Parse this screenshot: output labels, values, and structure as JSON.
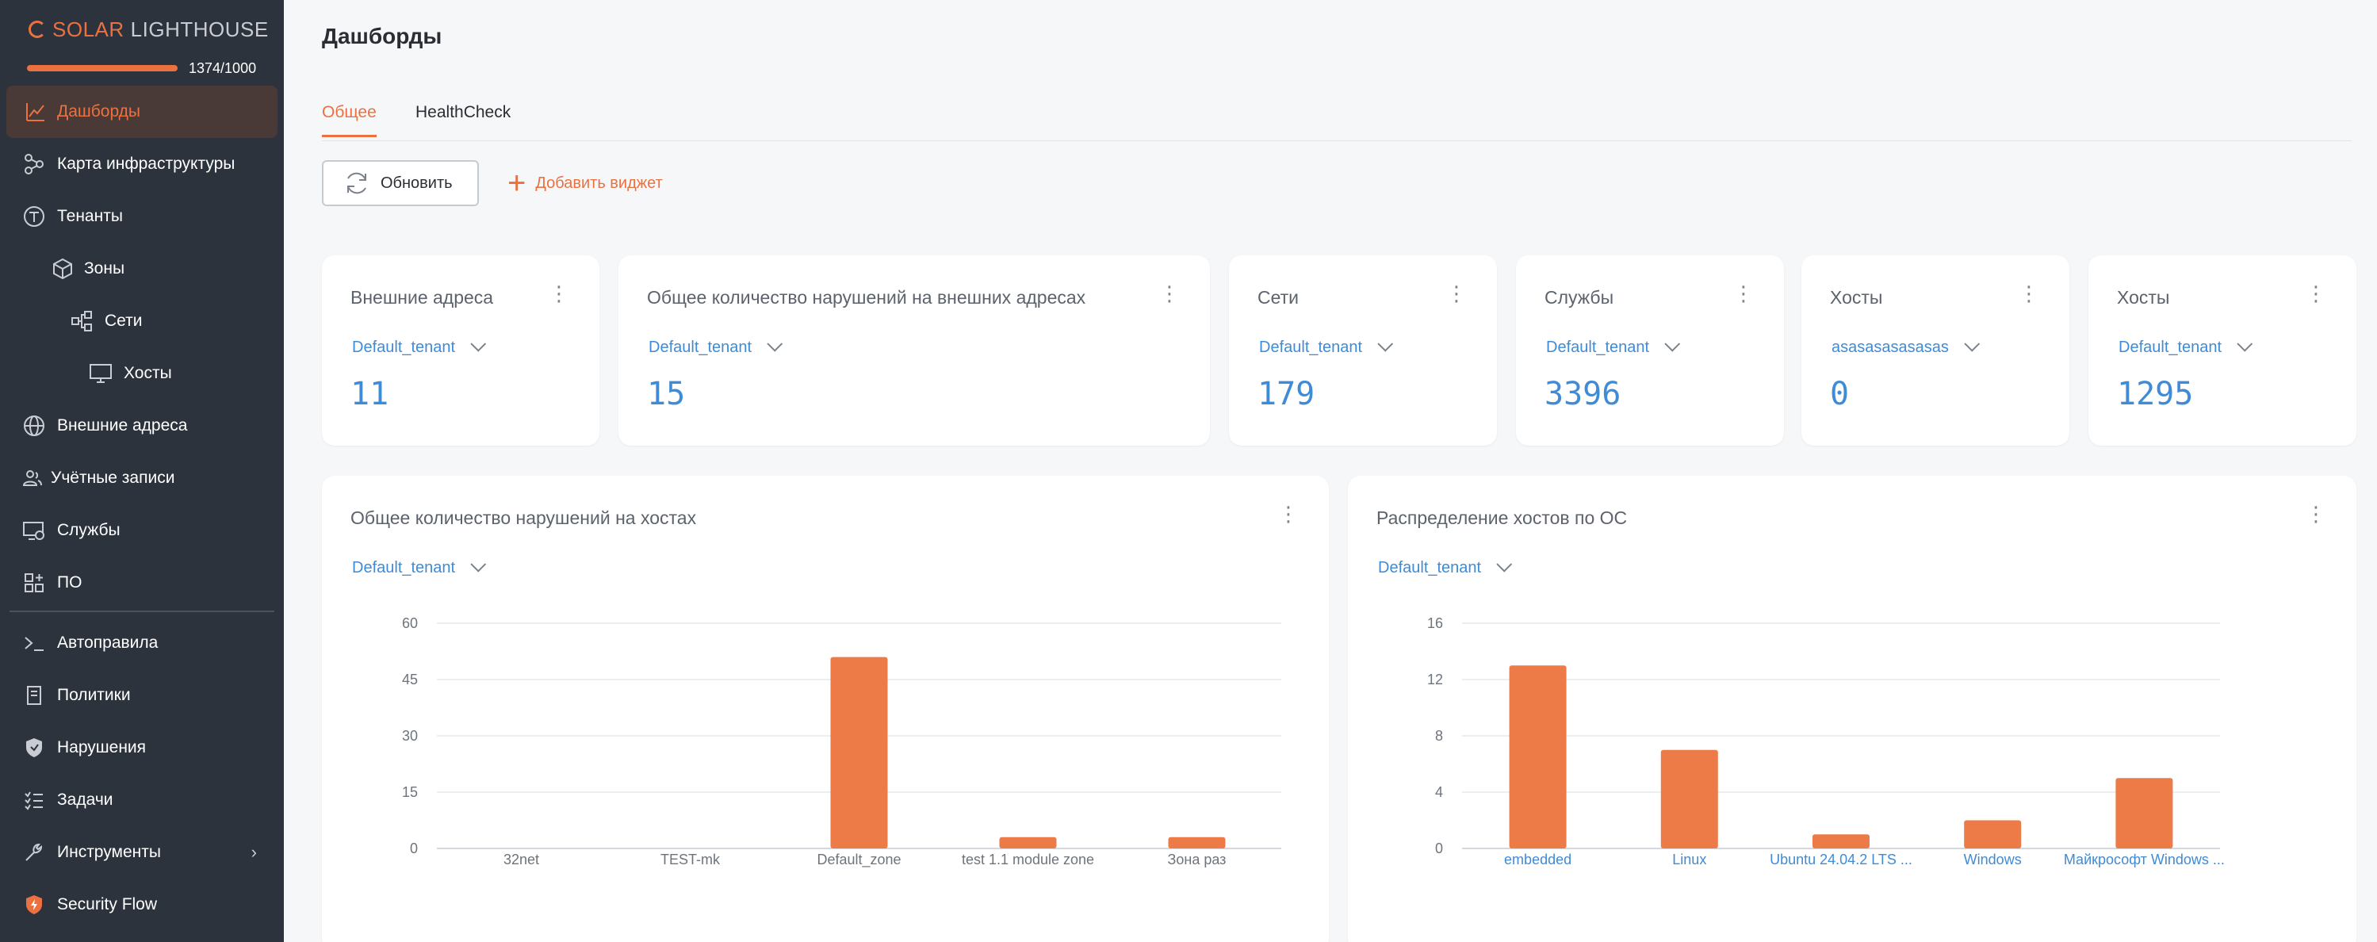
{
  "brand": {
    "solar": "SOLAR",
    "lighthouse": "LIGHTHOUSE",
    "license": "1374/1000",
    "accent": "#ec7141"
  },
  "sidebar": {
    "items": [
      {
        "label": "Дашборды",
        "icon": "chart-line-icon",
        "active": true
      },
      {
        "label": "Карта инфраструктуры",
        "icon": "graph-icon"
      },
      {
        "label": "Тенанты",
        "icon": "tenant-icon"
      },
      {
        "label": "Зоны",
        "icon": "cube-icon"
      },
      {
        "label": "Сети",
        "icon": "network-icon"
      },
      {
        "label": "Хосты",
        "icon": "monitor-icon"
      },
      {
        "label": "Внешние адреса",
        "icon": "globe-icon"
      },
      {
        "label": "Учётные записи",
        "icon": "users-icon"
      },
      {
        "label": "Службы",
        "icon": "service-icon"
      },
      {
        "label": "ПО",
        "icon": "apps-icon"
      },
      {
        "label": "Автоправила",
        "icon": "terminal-icon"
      },
      {
        "label": "Политики",
        "icon": "document-icon"
      },
      {
        "label": "Нарушения",
        "icon": "shield-icon"
      },
      {
        "label": "Задачи",
        "icon": "tasks-icon"
      },
      {
        "label": "Инструменты",
        "icon": "wrench-icon"
      },
      {
        "label": "Security Flow",
        "icon": "security-flow-icon"
      }
    ]
  },
  "header": {
    "title": "Дашборды"
  },
  "tabs": [
    {
      "label": "Общее",
      "active": true
    },
    {
      "label": "HealthCheck"
    }
  ],
  "toolbar": {
    "refresh_label": "Обновить",
    "add_widget_label": "Добавить виджет"
  },
  "stat_cards": [
    {
      "title": "Внешние адреса",
      "tenant": "Default_tenant",
      "value": "11"
    },
    {
      "title": "Общее количество нарушений на внешних адресах",
      "tenant": "Default_tenant",
      "value": "15"
    },
    {
      "title": "Сети",
      "tenant": "Default_tenant",
      "value": "179"
    },
    {
      "title": "Службы",
      "tenant": "Default_tenant",
      "value": "3396"
    },
    {
      "title": "Хосты",
      "tenant": "asasasasasasas",
      "value": "0"
    },
    {
      "title": "Хосты",
      "tenant": "Default_tenant",
      "value": "1295"
    }
  ],
  "chart_cards": [
    {
      "title": "Общее количество нарушений на хостах",
      "tenant": "Default_tenant"
    },
    {
      "title": "Распределение хостов по ОС",
      "tenant": "Default_tenant"
    }
  ],
  "chart_data": [
    {
      "type": "bar",
      "title": "Общее количество нарушений на хостах",
      "categories": [
        "32net",
        "TEST-mk",
        "Default_zone",
        "test 1.1 module zone",
        "Зона раз"
      ],
      "values": [
        0,
        0,
        51,
        3,
        3
      ],
      "ylim": [
        0,
        60
      ],
      "yticks": [
        0,
        15,
        30,
        45,
        60
      ],
      "grid": true,
      "bar_color": "#ec7b48",
      "label_color": "#6e747c"
    },
    {
      "type": "bar",
      "title": "Распределение хостов по ОС",
      "categories": [
        "embedded",
        "Linux",
        "Ubuntu 24.04.2 LTS ...",
        "Windows",
        "Майкрософт Windows ..."
      ],
      "values": [
        13,
        7,
        1,
        2,
        5
      ],
      "ylim": [
        0,
        16
      ],
      "yticks": [
        0,
        4,
        8,
        12,
        16
      ],
      "grid": true,
      "bar_color": "#ec7b48",
      "label_color": "#3f8bd6"
    }
  ]
}
